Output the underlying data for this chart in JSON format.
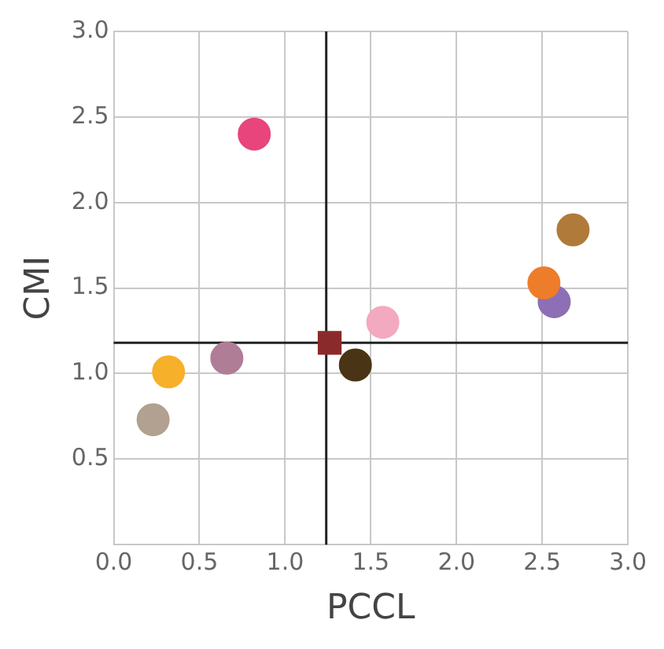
{
  "chart_data": {
    "type": "scatter",
    "xlabel": "PCCL",
    "ylabel": "CMI",
    "xlim": [
      0,
      3
    ],
    "ylim": [
      0,
      3
    ],
    "xticks": [
      {
        "value": 0,
        "label": "0.0"
      },
      {
        "value": 0.5,
        "label": "0.5"
      },
      {
        "value": 1,
        "label": "1.0"
      },
      {
        "value": 1.5,
        "label": "1.5"
      },
      {
        "value": 2,
        "label": "2.0"
      },
      {
        "value": 2.5,
        "label": "2.5"
      },
      {
        "value": 3,
        "label": "3.0"
      }
    ],
    "yticks": [
      {
        "value": 0,
        "label": null
      },
      {
        "value": 0.5,
        "label": "0.5"
      },
      {
        "value": 1,
        "label": "1.0"
      },
      {
        "value": 1.5,
        "label": "1.5"
      },
      {
        "value": 2,
        "label": "2.0"
      },
      {
        "value": 2.5,
        "label": "2.5"
      },
      {
        "value": 3,
        "label": "3.0"
      }
    ],
    "grid": true,
    "legend": false,
    "marker": "circle",
    "ref_lines": [
      {
        "axis": "x",
        "value": 1.24,
        "color": "#222222"
      },
      {
        "axis": "y",
        "value": 1.18,
        "color": "#222222"
      }
    ],
    "series": [
      {
        "color": "#e8457c",
        "x": [
          0.82
        ],
        "values": [
          2.4
        ]
      },
      {
        "color": "#f6b02a",
        "x": [
          0.32
        ],
        "values": [
          1.01
        ]
      },
      {
        "color": "#b2a090",
        "x": [
          0.23
        ],
        "values": [
          0.73
        ]
      },
      {
        "color": "#b07d97",
        "x": [
          0.66
        ],
        "values": [
          1.09
        ]
      },
      {
        "color": "#8b2a2a",
        "x": [
          1.26
        ],
        "values": [
          1.18
        ],
        "marker": "square"
      },
      {
        "color": "#4a3416",
        "x": [
          1.41
        ],
        "values": [
          1.05
        ]
      },
      {
        "color": "#f3a9c0",
        "x": [
          1.57
        ],
        "values": [
          1.3
        ]
      },
      {
        "color": "#ee7d2b",
        "x": [
          2.51
        ],
        "values": [
          1.53
        ]
      },
      {
        "color": "#8c6fb5",
        "x": [
          2.57
        ],
        "values": [
          1.42
        ]
      },
      {
        "color": "#b07b3a",
        "x": [
          2.68
        ],
        "values": [
          1.84
        ]
      }
    ]
  }
}
